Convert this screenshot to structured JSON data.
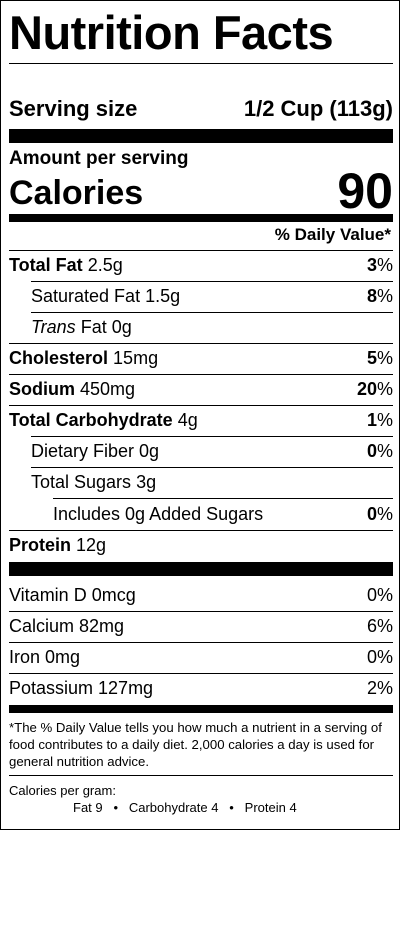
{
  "title": "Nutrition Facts",
  "serving": {
    "label": "Serving size",
    "value": "1/2 Cup  (113g)"
  },
  "amount_per_serving": "Amount per serving",
  "calories": {
    "label": "Calories",
    "value": "90"
  },
  "dv_header": "% Daily Value*",
  "nutrients": {
    "total_fat": {
      "name": "Total Fat",
      "amount": "2.5g",
      "pct": "3",
      "pct_sign": "%"
    },
    "saturated_fat": {
      "name": "Saturated Fat",
      "amount": "1.5g",
      "pct": "8",
      "pct_sign": "%"
    },
    "trans_fat": {
      "name_italic": "Trans",
      "name_rest": "Fat",
      "amount": "0g"
    },
    "cholesterol": {
      "name": "Cholesterol",
      "amount": "15mg",
      "pct": "5",
      "pct_sign": "%"
    },
    "sodium": {
      "name": "Sodium",
      "amount": "450mg",
      "pct": "20",
      "pct_sign": "%"
    },
    "total_carb": {
      "name": "Total Carbohydrate",
      "amount": "4g",
      "pct": "1",
      "pct_sign": "%"
    },
    "dietary_fiber": {
      "name": "Dietary Fiber",
      "amount": "0g",
      "pct": "0",
      "pct_sign": "%"
    },
    "total_sugars": {
      "name": "Total Sugars",
      "amount": "3g"
    },
    "added_sugars": {
      "name": "Includes 0g Added Sugars",
      "pct": "0",
      "pct_sign": "%"
    },
    "protein": {
      "name": "Protein",
      "amount": "12g"
    }
  },
  "vitamins": [
    {
      "name": "Vitamin D 0mcg",
      "pct": "0%"
    },
    {
      "name": "Calcium 82mg",
      "pct": "6%"
    },
    {
      "name": "Iron 0mg",
      "pct": "0%"
    },
    {
      "name": "Potassium 127mg",
      "pct": "2%"
    }
  ],
  "footnote": "*The % Daily Value tells you how much a nutrient in a serving of food contributes to a daily diet. 2,000 calories a day is used for general nutrition advice.",
  "calories_per_gram": {
    "label": "Calories per gram:",
    "values": "Fat 9   •   Carbohydrate 4   •   Protein 4"
  }
}
